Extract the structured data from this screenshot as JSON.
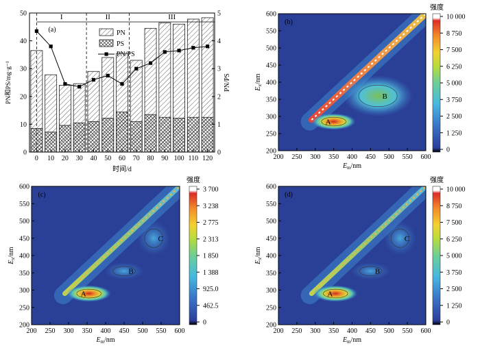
{
  "chart_data": [
    {
      "panel": "(a)",
      "type": "bar",
      "categories": [
        "0",
        "10",
        "20",
        "30",
        "40",
        "50",
        "60",
        "70",
        "80",
        "90",
        "100",
        "110",
        "120"
      ],
      "series": [
        {
          "name": "PN",
          "type": "bar",
          "values": [
            36.5,
            27.8,
            24.0,
            24.6,
            29.0,
            34.0,
            35.5,
            33.0,
            44.5,
            46.5,
            46.0,
            47.8,
            48.3
          ]
        },
        {
          "name": "PS",
          "type": "bar",
          "values": [
            8.5,
            7.2,
            9.6,
            10.5,
            11.0,
            12.2,
            14.4,
            11.0,
            13.5,
            12.5,
            12.2,
            12.5,
            12.5
          ]
        },
        {
          "name": "PN/PS",
          "type": "line",
          "axis": "right",
          "values": [
            4.35,
            3.8,
            2.45,
            2.35,
            2.6,
            2.75,
            2.45,
            3.0,
            3.2,
            3.6,
            3.65,
            3.75,
            3.8
          ]
        }
      ],
      "xlabel": "时间/d",
      "ylabel": "PN和PS/mg·g⁻¹",
      "ylabel_right": "PN/PS",
      "ylim": [
        0,
        50
      ],
      "yticks": [
        0,
        10,
        20,
        30,
        40,
        50
      ],
      "ylim_right": [
        0,
        5
      ],
      "yticks_right": [
        0,
        1,
        2,
        3,
        4,
        5
      ],
      "stage_labels": [
        "I",
        "II",
        "III"
      ],
      "stage_boundaries": [
        0,
        35,
        65,
        120
      ],
      "grid": false,
      "legend": "top-right"
    },
    {
      "panel": "(b)",
      "type": "heatmap",
      "xlabel": "Em/nm",
      "ylabel": "Ex/nm",
      "xlim": [
        200,
        600
      ],
      "ylim": [
        200,
        600
      ],
      "xticks": [
        200,
        250,
        300,
        350,
        400,
        450,
        500,
        550,
        600
      ],
      "yticks": [
        200,
        250,
        300,
        350,
        400,
        450,
        500,
        550,
        600
      ],
      "peaks": [
        {
          "label": "A",
          "em": 350,
          "ex": 285
        },
        {
          "label": "B",
          "em": 470,
          "ex": 360
        }
      ],
      "colorbar": {
        "title": "强度",
        "max": 10000,
        "ticks": [
          "10 000",
          "8 750",
          "7 500",
          "6 250",
          "5 000",
          "3 750",
          "2 500",
          "1 250",
          "0"
        ]
      }
    },
    {
      "panel": "(c)",
      "type": "heatmap",
      "xlabel": "Em/nm",
      "ylabel": "Ex/nm",
      "xlim": [
        200,
        600
      ],
      "ylim": [
        200,
        600
      ],
      "xticks": [
        200,
        250,
        300,
        350,
        400,
        450,
        500,
        550,
        600
      ],
      "yticks": [
        200,
        250,
        300,
        350,
        400,
        450,
        500,
        550,
        600
      ],
      "peaks": [
        {
          "label": "A",
          "em": 355,
          "ex": 290
        },
        {
          "label": "B",
          "em": 450,
          "ex": 355
        },
        {
          "label": "C",
          "em": 530,
          "ex": 450
        }
      ],
      "colorbar": {
        "title": "强度",
        "max": 3700,
        "ticks": [
          "3 700",
          "3 238",
          "2 775",
          "2 313",
          "1 850",
          "1 388",
          "925.0",
          "462.5",
          "0"
        ]
      }
    },
    {
      "panel": "(d)",
      "type": "heatmap",
      "xlabel": "Em/nm",
      "ylabel": "Ex/nm",
      "xlim": [
        200,
        600
      ],
      "ylim": [
        200,
        600
      ],
      "xticks": [
        200,
        250,
        300,
        350,
        400,
        450,
        500,
        550,
        600
      ],
      "yticks": [
        200,
        250,
        300,
        350,
        400,
        450,
        500,
        550,
        600
      ],
      "peaks": [
        {
          "label": "A",
          "em": 355,
          "ex": 290
        },
        {
          "label": "B",
          "em": 450,
          "ex": 355
        },
        {
          "label": "C",
          "em": 530,
          "ex": 450
        }
      ],
      "colorbar": {
        "title": "强度",
        "max": 10000,
        "ticks": [
          "10 000",
          "8 750",
          "7 500",
          "6 250",
          "5 000",
          "3 750",
          "2 500",
          "1 250",
          "0"
        ]
      }
    }
  ],
  "colors": {
    "bar_fill": "#ffffff",
    "line": "#000000",
    "map_background": "#2a3f96",
    "colorbar_top": "#ffffff",
    "colorbar_bottom": "#000000"
  }
}
